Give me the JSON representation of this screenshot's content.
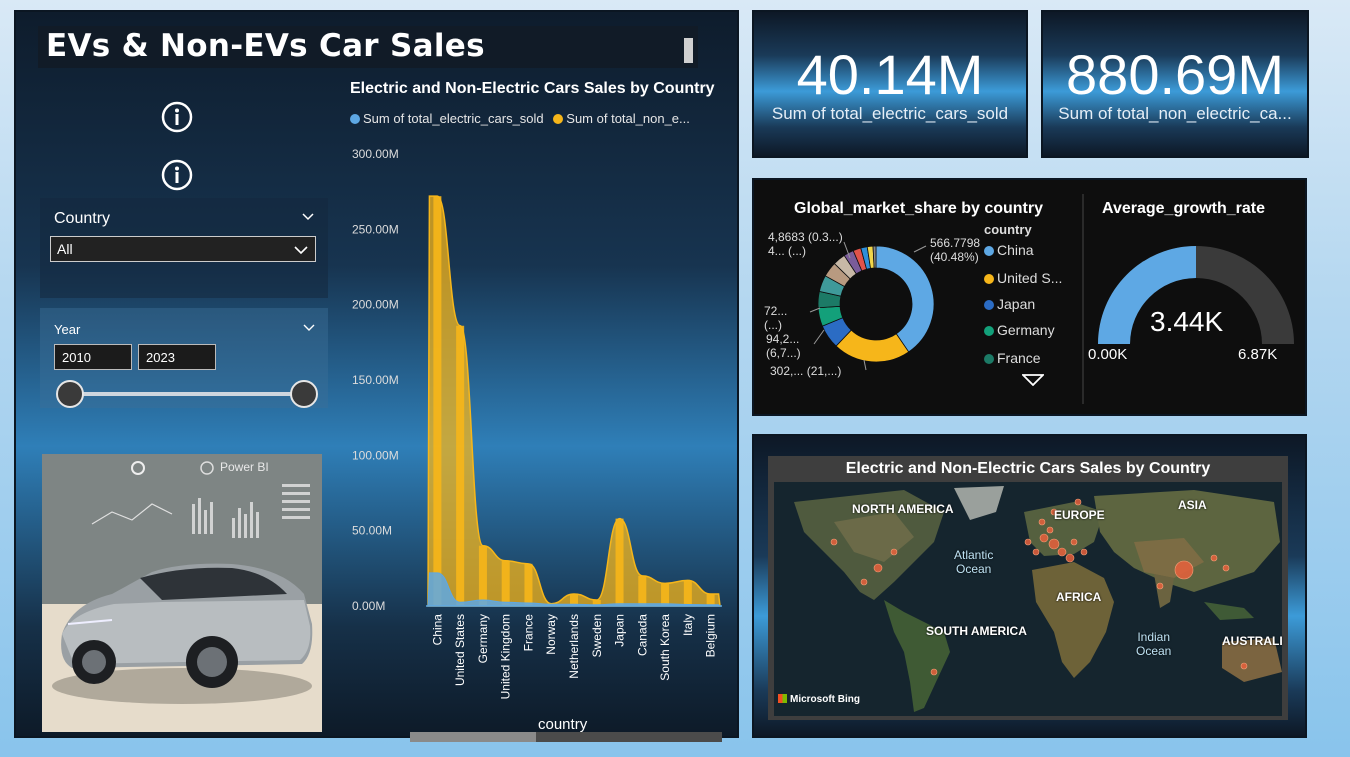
{
  "dashboard": {
    "title": "EVs & Non-EVs Car Sales"
  },
  "slicers": {
    "country": {
      "label": "Country",
      "value": "All"
    },
    "year": {
      "label": "Year",
      "start": "2010",
      "end": "2023",
      "range_min": 2010,
      "range_max": 2023,
      "selected": [
        2010,
        2023
      ]
    }
  },
  "car_image": {
    "brand_label": "Power BI"
  },
  "kpis": [
    {
      "value": "40.14M",
      "label": "Sum of total_electric_cars_sold"
    },
    {
      "value": "880.69M",
      "label": "Sum of total_non_electric_ca..."
    }
  ],
  "donut": {
    "title": "Global_market_share by country",
    "legend_title": "country",
    "legend": [
      {
        "name": "China",
        "color": "#5ea8e4"
      },
      {
        "name": "United S...",
        "color": "#f6b61a"
      },
      {
        "name": "Japan",
        "color": "#2b6cc4"
      },
      {
        "name": "Germany",
        "color": "#13a07a"
      },
      {
        "name": "France",
        "color": "#1c7a66"
      }
    ],
    "labels": [
      {
        "text": "566.7798",
        "text2": "(40.48%)"
      },
      {
        "text": "4,8683 (0.3...)",
        "text2": "4... (...)"
      },
      {
        "text": "72...",
        "text2": "(...)"
      },
      {
        "text": "94,2...",
        "text2": "(6,7...)"
      },
      {
        "text": "302,... (21,...)"
      }
    ]
  },
  "gauge": {
    "title": "Average_growth_rate",
    "value": "3.44K",
    "min": "0.00K",
    "max": "6.87K",
    "fraction": 0.5
  },
  "map": {
    "title": "Electric and Non-Electric Cars Sales by Country",
    "continents": [
      "NORTH AMERICA",
      "EUROPE",
      "ASIA",
      "AFRICA",
      "SOUTH AMERICA",
      "AUSTRALI"
    ],
    "oceans": [
      "Atlantic\nOcean",
      "Indian\nOcean"
    ],
    "attribution": "Microsoft Bing"
  },
  "chart_data": [
    {
      "type": "area",
      "title": "Electric and Non-Electric Cars Sales by Country",
      "xlabel": "country",
      "ylabel": "",
      "categories": [
        "China",
        "United States",
        "Germany",
        "United Kingdom",
        "France",
        "Norway",
        "Netherlands",
        "Sweden",
        "Japan",
        "Canada",
        "South Korea",
        "Italy",
        "Belgium"
      ],
      "series": [
        {
          "name": "Sum of total_electric_cars_sold",
          "legend_label": "Sum of total_electric_cars_sold",
          "color": "#5ea8e4",
          "values": [
            22,
            2.5,
            4,
            2.5,
            2,
            1.2,
            1.2,
            0.8,
            1.5,
            1.5,
            1.5,
            1,
            0.8
          ]
        },
        {
          "name": "Sum of total_non_electric_cars_sold",
          "legend_label": "Sum of total_non_e...",
          "color": "#f6b61a",
          "values": [
            272,
            186,
            40,
            30,
            28,
            1.5,
            8,
            4,
            58,
            20,
            15,
            17,
            8
          ]
        }
      ],
      "ylim": [
        0,
        300
      ],
      "yticks": [
        "0.00M",
        "50.00M",
        "100.00M",
        "150.00M",
        "200.00M",
        "250.00M",
        "300.00M"
      ],
      "legend_position": "top-left",
      "grid": false
    },
    {
      "type": "pie",
      "title": "Global_market_share by country",
      "donut": true,
      "slices": [
        {
          "name": "China",
          "value": 40.48,
          "color": "#5ea8e4"
        },
        {
          "name": "United S...",
          "value": 21.6,
          "color": "#f6b61a"
        },
        {
          "name": "Japan",
          "value": 6.7,
          "color": "#2b6cc4"
        },
        {
          "name": "Germany",
          "value": 5.2,
          "color": "#13a07a"
        },
        {
          "name": "France",
          "value": 4.5,
          "color": "#1c7a66"
        },
        {
          "name": "other-1",
          "value": 4.6,
          "color": "#3f9a9a"
        },
        {
          "name": "other-2",
          "value": 4.2,
          "color": "#b89a80"
        },
        {
          "name": "other-3",
          "value": 3.5,
          "color": "#c7b8a6"
        },
        {
          "name": "other-4",
          "value": 2.8,
          "color": "#7a5c9a"
        },
        {
          "name": "other-5",
          "value": 2.2,
          "color": "#e0534a"
        },
        {
          "name": "other-6",
          "value": 1.8,
          "color": "#2f8fd8"
        },
        {
          "name": "other-7",
          "value": 1.6,
          "color": "#f0d54a"
        },
        {
          "name": "other-8",
          "value": 0.82,
          "color": "#888888"
        }
      ]
    }
  ]
}
